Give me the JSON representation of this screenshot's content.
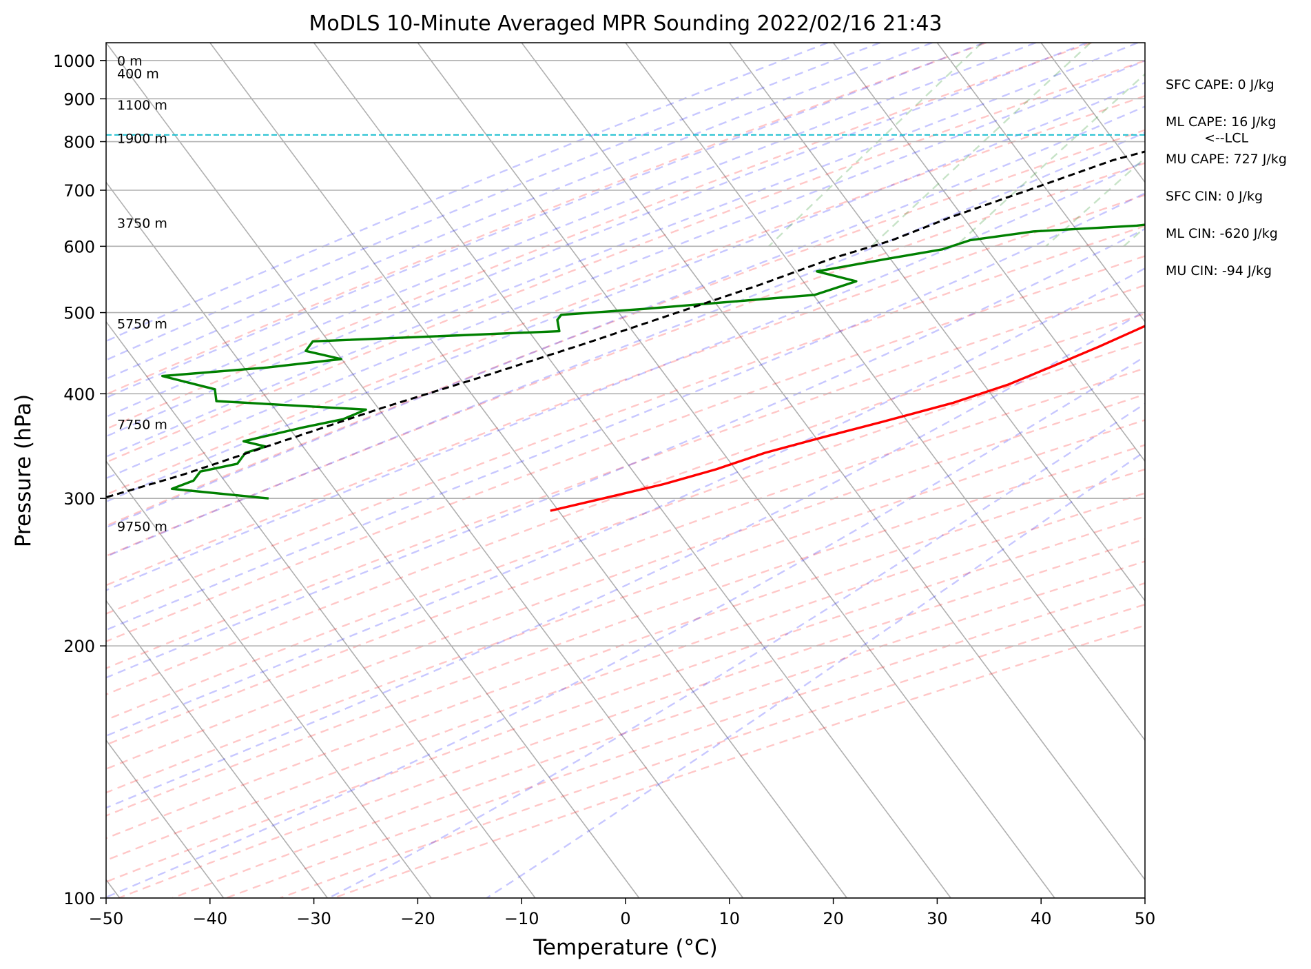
{
  "chart_data": {
    "type": "skew-t",
    "title": "MoDLS 10-Minute Averaged MPR Sounding 2022/02/16 21:43",
    "xlabel": "Temperature (°C)",
    "ylabel": "Pressure (hPa)",
    "xlim": [
      -50,
      50
    ],
    "ylim": [
      1050,
      100
    ],
    "x_ticks": [
      -50,
      -40,
      -30,
      -20,
      -10,
      0,
      10,
      20,
      30,
      40,
      50
    ],
    "x_tick_labels": [
      "−50",
      "−40",
      "−30",
      "−20",
      "−10",
      "0",
      "10",
      "20",
      "30",
      "40",
      "50"
    ],
    "y_ticks": [
      1000,
      900,
      800,
      700,
      600,
      500,
      400,
      300,
      200,
      100
    ],
    "y_tick_labels": [
      "1000",
      "900",
      "800",
      "700",
      "600",
      "500",
      "400",
      "300",
      "200",
      "100"
    ],
    "grid": true,
    "height_labels": [
      {
        "p": 1000,
        "text": "0 m"
      },
      {
        "p": 965,
        "text": "400 m"
      },
      {
        "p": 885,
        "text": "1100 m"
      },
      {
        "p": 808,
        "text": "1900 m"
      },
      {
        "p": 640,
        "text": "3750 m"
      },
      {
        "p": 485,
        "text": "5750 m"
      },
      {
        "p": 368,
        "text": "7750 m"
      },
      {
        "p": 278,
        "text": "9750 m"
      }
    ],
    "lcl": {
      "p": 815,
      "label": "<--LCL",
      "color": "#17becf"
    },
    "indices": [
      "SFC CAPE: 0 J/kg",
      "ML CAPE: 16 J/kg",
      "MU CAPE: 727 J/kg",
      "SFC CIN: 0 J/kg",
      "ML CIN: -620 J/kg",
      "MU CIN: -94 J/kg"
    ],
    "series": [
      {
        "color": "#ff0000",
        "points": [
          [
            17.3,
            990
          ],
          [
            22.8,
            995
          ],
          [
            23.6,
            985
          ],
          [
            23.2,
            965
          ],
          [
            22.5,
            930
          ],
          [
            21.8,
            900
          ],
          [
            21.3,
            860
          ],
          [
            20.5,
            815
          ],
          [
            19.5,
            760
          ],
          [
            18.5,
            700
          ],
          [
            17.8,
            660
          ],
          [
            16.9,
            640
          ],
          [
            16.5,
            620
          ],
          [
            14.0,
            560
          ],
          [
            12.5,
            530
          ],
          [
            11.0,
            500
          ],
          [
            8.8,
            480
          ],
          [
            6.0,
            455
          ],
          [
            2.8,
            430
          ],
          [
            0.0,
            410
          ],
          [
            -4.0,
            390
          ],
          [
            -9.5,
            370
          ],
          [
            -14.0,
            355
          ],
          [
            -18.5,
            340
          ],
          [
            -22.0,
            325
          ],
          [
            -26.0,
            312
          ],
          [
            -30.8,
            300
          ],
          [
            -35.0,
            290
          ]
        ]
      },
      {
        "color": "#008000",
        "points": [
          [
            8.0,
            1000
          ],
          [
            13.5,
            995
          ],
          [
            15.5,
            985
          ],
          [
            17.5,
            975
          ],
          [
            22.5,
            965
          ],
          [
            26.0,
            960
          ],
          [
            26.5,
            945
          ],
          [
            25.5,
            925
          ],
          [
            23.5,
            900
          ],
          [
            22.0,
            870
          ],
          [
            20.5,
            845
          ],
          [
            19.5,
            815
          ],
          [
            17.5,
            780
          ],
          [
            14.3,
            740
          ],
          [
            11.3,
            705
          ],
          [
            8.5,
            680
          ],
          [
            6.5,
            660
          ],
          [
            5.5,
            645
          ],
          [
            1.0,
            635
          ],
          [
            -8.5,
            625
          ],
          [
            -14.0,
            610
          ],
          [
            -16.0,
            595
          ],
          [
            -20.5,
            580
          ],
          [
            -26.5,
            560
          ],
          [
            -22.0,
            545
          ],
          [
            -25.0,
            525
          ],
          [
            -40.5,
            505
          ],
          [
            -48.0,
            497
          ],
          [
            -48.0,
            490
          ],
          [
            -47.0,
            475
          ],
          [
            -70.0,
            462
          ],
          [
            -70.0,
            450
          ],
          [
            -66.0,
            440
          ],
          [
            -72.5,
            430
          ],
          [
            -82.0,
            420
          ],
          [
            -76.0,
            405
          ],
          [
            -75.0,
            392
          ],
          [
            -60.0,
            383
          ],
          [
            -61.5,
            373
          ],
          [
            -65.0,
            364
          ],
          [
            -69.5,
            351
          ],
          [
            -67.0,
            346
          ],
          [
            -68.5,
            340
          ],
          [
            -68.5,
            330
          ],
          [
            -71.5,
            323
          ],
          [
            -71.5,
            315
          ],
          [
            -73.0,
            308
          ],
          [
            -63.0,
            300
          ]
        ]
      },
      {
        "color": "#000000",
        "dashed": true,
        "points": [
          [
            22.0,
            1000
          ],
          [
            17.0,
            960
          ],
          [
            12.5,
            920
          ],
          [
            8.0,
            880
          ],
          [
            4.3,
            845
          ],
          [
            1.3,
            815
          ],
          [
            -6.0,
            760
          ],
          [
            -12.0,
            700
          ],
          [
            -17.5,
            650
          ],
          [
            -21.5,
            610
          ],
          [
            -26.0,
            580
          ],
          [
            -31.0,
            540
          ],
          [
            -37.0,
            500
          ],
          [
            -43.5,
            460
          ],
          [
            -51.0,
            420
          ],
          [
            -58.5,
            385
          ],
          [
            -66.0,
            350
          ],
          [
            -73.0,
            320
          ],
          [
            -79.0,
            300
          ]
        ]
      }
    ]
  }
}
